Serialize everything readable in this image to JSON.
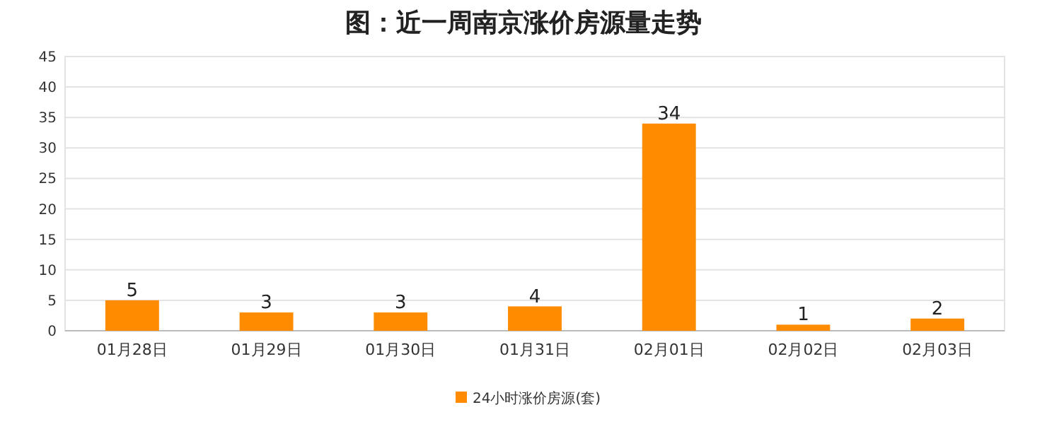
{
  "chart_data": {
    "type": "bar",
    "title": "图：近一周南京涨价房源量走势",
    "categories": [
      "01月28日",
      "01月29日",
      "01月30日",
      "01月31日",
      "02月01日",
      "02月02日",
      "02月03日"
    ],
    "series": [
      {
        "name": "24小时涨价房源(套)",
        "color": "#ff8c00",
        "values": [
          5,
          3,
          3,
          4,
          34,
          1,
          2
        ]
      }
    ],
    "ylim": [
      0,
      45
    ],
    "yticks": [
      0,
      5,
      10,
      15,
      20,
      25,
      30,
      35,
      40,
      45
    ],
    "grid": "y",
    "legend": "bottom",
    "data_labels": true
  }
}
